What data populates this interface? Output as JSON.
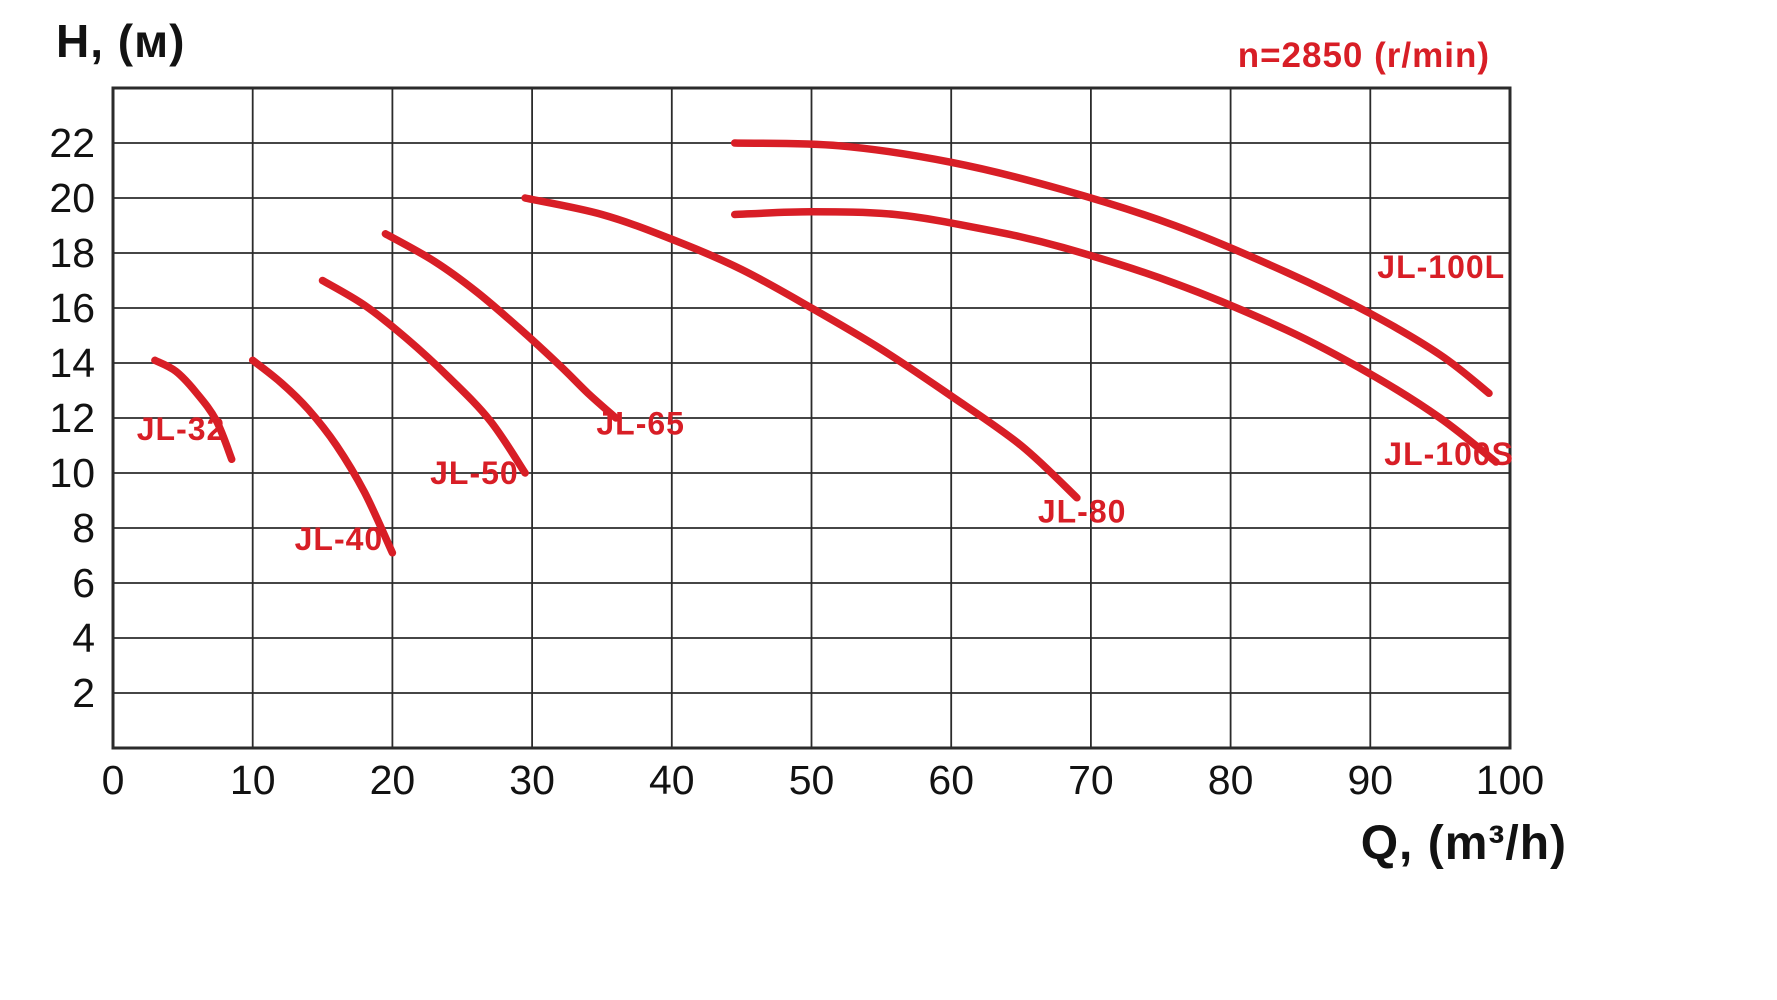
{
  "header": {
    "title": "n=2850 (r/min)"
  },
  "colors": {
    "accent": "#d81e26",
    "grid": "#2b2b2b",
    "text": "#121212"
  },
  "chart_data": {
    "type": "line",
    "title": "n=2850 (r/min)",
    "xlabel": "Q, (m³/h)",
    "ylabel": "H, (м)",
    "xlim": [
      0,
      100
    ],
    "ylim": [
      0,
      24
    ],
    "x_ticks": [
      0,
      10,
      20,
      30,
      40,
      50,
      60,
      70,
      80,
      90,
      100
    ],
    "y_ticks": [
      2,
      4,
      6,
      8,
      10,
      12,
      14,
      16,
      18,
      20,
      22
    ],
    "grid": true,
    "grid_step_y": 2,
    "legend_position": "inline-labels",
    "series": [
      {
        "name": "JL-32",
        "points": [
          [
            3,
            14.1
          ],
          [
            4.5,
            13.7
          ],
          [
            6,
            12.9
          ],
          [
            7.4,
            11.9
          ],
          [
            8.5,
            10.5
          ]
        ],
        "label_pos": [
          1.7,
          11.2
        ]
      },
      {
        "name": "JL-40",
        "points": [
          [
            10,
            14.1
          ],
          [
            12,
            13.3
          ],
          [
            14,
            12.3
          ],
          [
            16,
            11.0
          ],
          [
            18,
            9.3
          ],
          [
            20,
            7.1
          ]
        ],
        "label_pos": [
          13.0,
          7.2
        ]
      },
      {
        "name": "JL-50",
        "points": [
          [
            15,
            17.0
          ],
          [
            18,
            16.1
          ],
          [
            21,
            14.9
          ],
          [
            24,
            13.5
          ],
          [
            27,
            11.9
          ],
          [
            29.5,
            10.0
          ]
        ],
        "label_pos": [
          22.7,
          9.6
        ]
      },
      {
        "name": "JL-65",
        "points": [
          [
            19.5,
            18.7
          ],
          [
            23,
            17.7
          ],
          [
            26,
            16.6
          ],
          [
            29,
            15.3
          ],
          [
            32,
            13.9
          ],
          [
            34,
            12.9
          ],
          [
            36,
            12.0
          ]
        ],
        "label_pos": [
          34.6,
          11.4
        ]
      },
      {
        "name": "JL-80",
        "points": [
          [
            29.5,
            20.0
          ],
          [
            35,
            19.4
          ],
          [
            40,
            18.5
          ],
          [
            45,
            17.4
          ],
          [
            50,
            16.0
          ],
          [
            55,
            14.5
          ],
          [
            60,
            12.8
          ],
          [
            65,
            11.0
          ],
          [
            69,
            9.1
          ]
        ],
        "label_pos": [
          66.2,
          8.2
        ]
      },
      {
        "name": "JL-100L",
        "points": [
          [
            44.5,
            22.0
          ],
          [
            52,
            21.9
          ],
          [
            60,
            21.3
          ],
          [
            68,
            20.3
          ],
          [
            76,
            19.0
          ],
          [
            84,
            17.3
          ],
          [
            90,
            15.8
          ],
          [
            95,
            14.3
          ],
          [
            98.5,
            12.9
          ]
        ],
        "label_pos": [
          90.5,
          17.1
        ]
      },
      {
        "name": "JL-100S",
        "points": [
          [
            44.5,
            19.4
          ],
          [
            50,
            19.5
          ],
          [
            56,
            19.4
          ],
          [
            62,
            18.9
          ],
          [
            68,
            18.2
          ],
          [
            76,
            16.9
          ],
          [
            84,
            15.2
          ],
          [
            90,
            13.6
          ],
          [
            95,
            12.0
          ],
          [
            99,
            10.4
          ]
        ],
        "label_pos": [
          91.0,
          10.3
        ]
      }
    ]
  }
}
